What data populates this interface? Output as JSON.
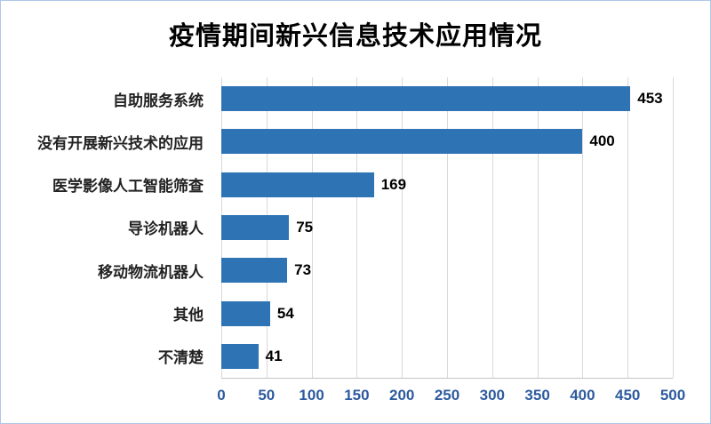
{
  "chart_data": {
    "type": "bar",
    "orientation": "horizontal",
    "title": "疫情期间新兴信息技术应用情况",
    "categories": [
      "自助服务系统",
      "没有开展新兴技术的应用",
      "医学影像人工智能筛查",
      "导诊机器人",
      "移动物流机器人",
      "其他",
      "不清楚"
    ],
    "values": [
      453,
      400,
      169,
      75,
      73,
      54,
      41
    ],
    "xlabel": "",
    "ylabel": "",
    "xlim": [
      0,
      500
    ],
    "x_ticks": [
      0,
      50,
      100,
      150,
      200,
      250,
      300,
      350,
      400,
      450,
      500
    ],
    "grid": "vertical",
    "legend": "none",
    "bar_color": "#2e74b5",
    "tick_color": "#2e5b9e",
    "gridline_color": "#d9d9d9"
  }
}
